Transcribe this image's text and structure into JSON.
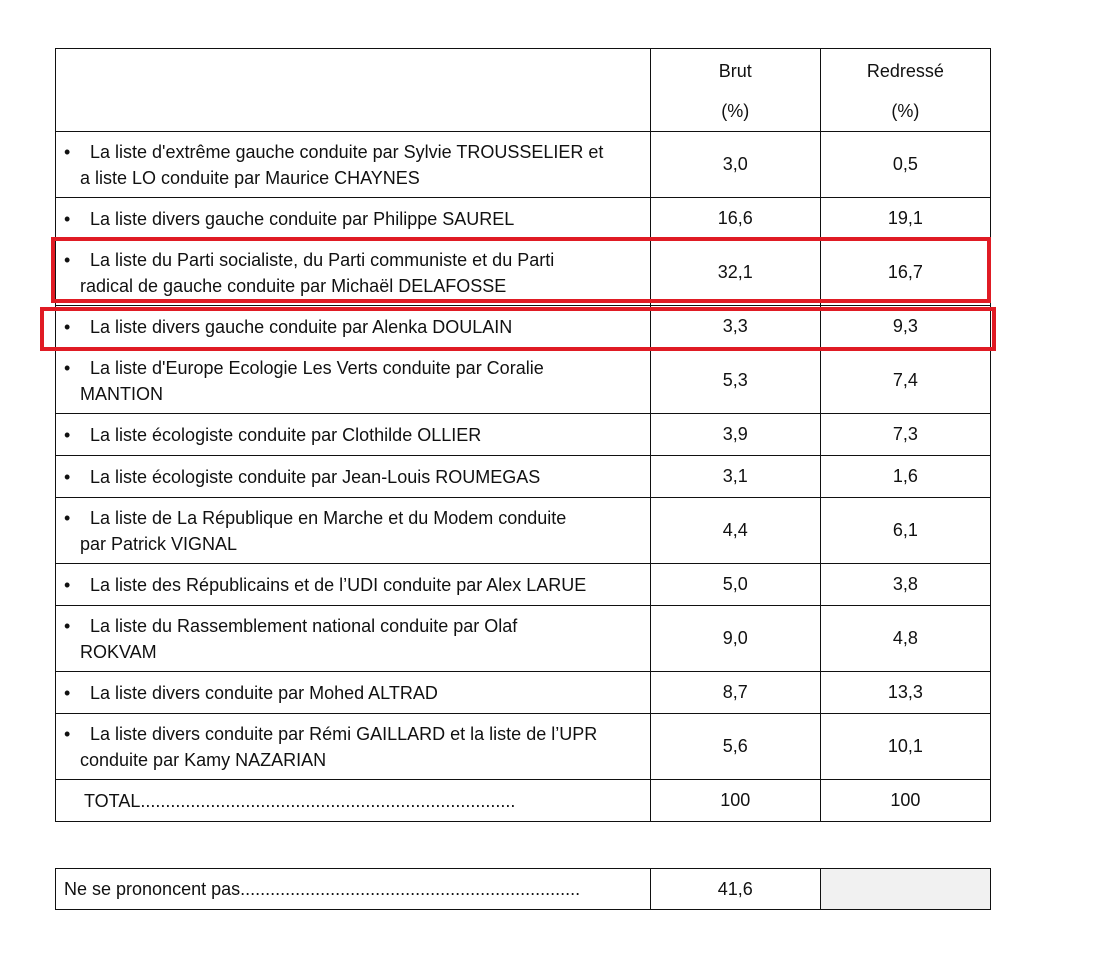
{
  "headers": {
    "brut_line1": "Brut",
    "brut_line2": "(%)",
    "redresse_line1": "Redressé",
    "redresse_line2": "(%)"
  },
  "rows": [
    {
      "line1": "La liste d'extrême gauche conduite par Sylvie TROUSSELIER et",
      "line2": "a liste LO conduite par Maurice CHAYNES",
      "brut": "3,0",
      "redresse": "0,5"
    },
    {
      "line1": "La liste divers gauche conduite par Philippe SAUREL",
      "line2": "",
      "brut": "16,6",
      "redresse": "19,1"
    },
    {
      "line1": "La liste du Parti socialiste, du Parti communiste et du Parti",
      "line2": "radical de gauche conduite par Michaël DELAFOSSE",
      "brut": "32,1",
      "redresse": "16,7"
    },
    {
      "line1": "La liste divers gauche conduite par Alenka DOULAIN",
      "line2": "",
      "brut": "3,3",
      "redresse": "9,3"
    },
    {
      "line1": "La liste d'Europe Ecologie Les Verts conduite par Coralie",
      "line2": "MANTION",
      "brut": "5,3",
      "redresse": "7,4"
    },
    {
      "line1": "La liste écologiste conduite par Clothilde OLLIER",
      "line2": "",
      "brut": "3,9",
      "redresse": "7,3"
    },
    {
      "line1": "La liste écologiste conduite par Jean-Louis ROUMEGAS",
      "line2": "",
      "brut": "3,1",
      "redresse": "1,6"
    },
    {
      "line1": "La liste de La République en Marche et du Modem conduite",
      "line2": "par Patrick VIGNAL",
      "brut": "4,4",
      "redresse": "6,1"
    },
    {
      "line1": "La liste des Républicains et de l’UDI conduite par Alex LARUE",
      "line2": "",
      "brut": "5,0",
      "redresse": "3,8"
    },
    {
      "line1": "La liste du Rassemblement national conduite par Olaf",
      "line2": "ROKVAM",
      "brut": "9,0",
      "redresse": "4,8"
    },
    {
      "line1": "La liste divers conduite par Mohed ALTRAD",
      "line2": "",
      "brut": "8,7",
      "redresse": "13,3"
    },
    {
      "line1": "La liste divers conduite par Rémi GAILLARD et la liste de l’UPR",
      "line2": "conduite par Kamy NAZARIAN",
      "brut": "5,6",
      "redresse": "10,1"
    }
  ],
  "total": {
    "label": "TOTAL...........................................................................",
    "brut": "100",
    "redresse": "100"
  },
  "no_opinion": {
    "label": "Ne se prononcent pas....................................................................",
    "brut": "41,6"
  },
  "colors": {
    "highlight": "#e01b24",
    "shaded_cell": "#f1f1f1"
  }
}
